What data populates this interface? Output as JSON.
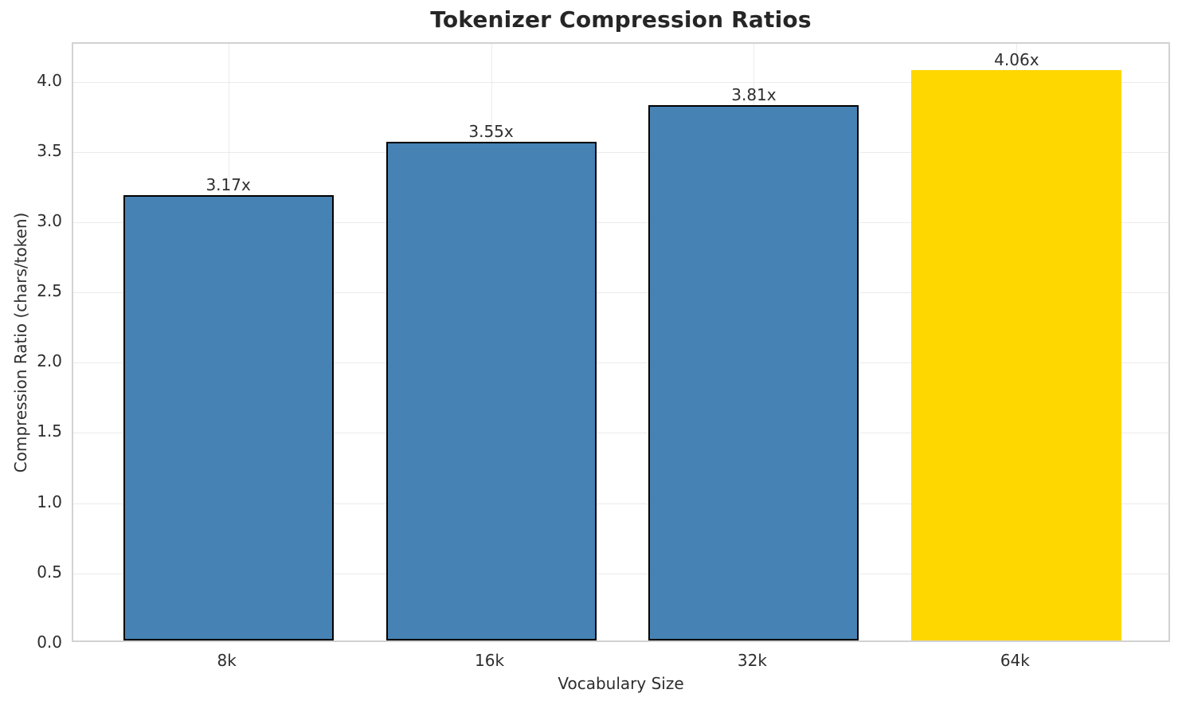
{
  "chart_data": {
    "type": "bar",
    "title": "Tokenizer Compression Ratios",
    "xlabel": "Vocabulary Size",
    "ylabel": "Compression Ratio (chars/token)",
    "categories": [
      "8k",
      "16k",
      "32k",
      "64k"
    ],
    "values": [
      3.17,
      3.55,
      3.81,
      4.06
    ],
    "value_labels": [
      "3.17x",
      "3.55x",
      "3.81x",
      "4.06x"
    ],
    "bar_fill_colors": [
      "#4682B4",
      "#4682B4",
      "#4682B4",
      "#FFD700"
    ],
    "bar_edge_colors": [
      "#000000",
      "#000000",
      "#000000",
      "none"
    ],
    "highlight_category": "64k",
    "ylim": [
      0,
      4.27
    ],
    "yticks": [
      0.0,
      0.5,
      1.0,
      1.5,
      2.0,
      2.5,
      3.0,
      3.5,
      4.0
    ],
    "ytick_labels": [
      "0.0",
      "0.5",
      "1.0",
      "1.5",
      "2.0",
      "2.5",
      "3.0",
      "3.5",
      "4.0"
    ],
    "grid": true,
    "legend_position": "none",
    "accent_colors": {
      "bar_blue": "#4682B4",
      "bar_gold": "#FFD700",
      "bar_edge": "#000000",
      "gridline": "#ebebeb",
      "spine": "#d2d2d2",
      "text": "#2e2e2e",
      "title_text": "#262626"
    }
  }
}
